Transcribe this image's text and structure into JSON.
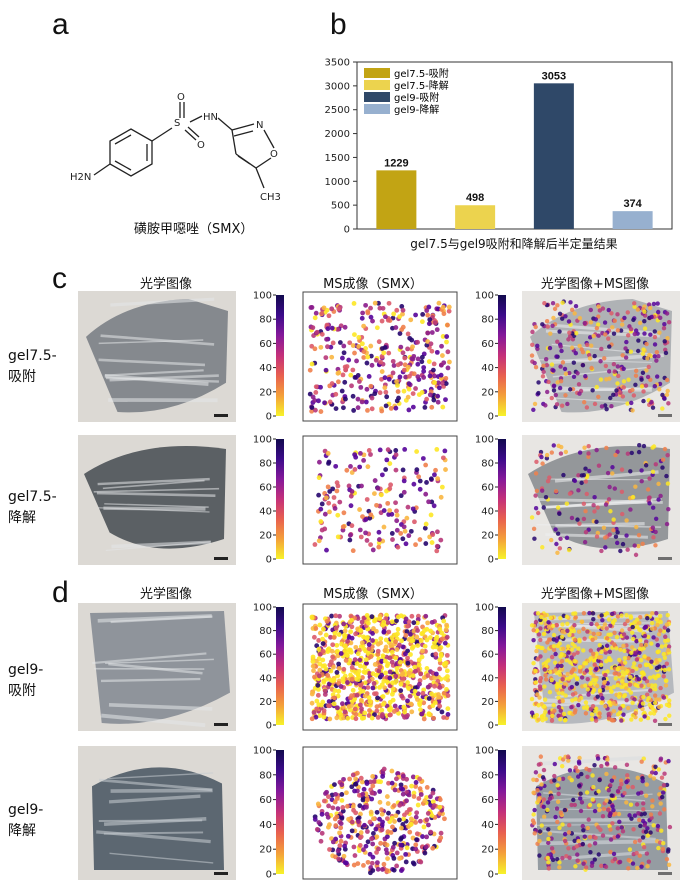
{
  "panels": {
    "a": {
      "letter": "a",
      "caption": "磺胺甲噁唑（SMX）",
      "atoms": {
        "nh": "HN",
        "s": "S",
        "o1": "O",
        "o2": "O",
        "n_ring": "N",
        "o_ring": "O",
        "h2n": "H2N",
        "ch3": "CH3"
      }
    },
    "b": {
      "letter": "b"
    },
    "c": {
      "letter": "c",
      "col_optical": "光学图像",
      "col_ms": "MS成像（SMX）",
      "col_overlay": "光学图像+MS图像",
      "row1_line1": "gel7.5-",
      "row1_line2": "吸附",
      "row2_line1": "gel7.5-",
      "row2_line2": "降解"
    },
    "d": {
      "letter": "d",
      "col_optical": "光学图像",
      "col_ms": "MS成像（SMX）",
      "col_overlay": "光学图像+MS图像",
      "row1_line1": "gel9-",
      "row1_line2": "吸附",
      "row2_line1": "gel9-",
      "row2_line2": "降解"
    }
  },
  "colorbar_ticks": [
    "100",
    "80",
    "60",
    "40",
    "20",
    "0"
  ],
  "colors": {
    "gel75_ads": "#c2a414",
    "gel75_deg": "#ecd34e",
    "gel9_ads": "#2f4868",
    "gel9_deg": "#97b0cf"
  },
  "chart_data": {
    "type": "bar",
    "categories": [
      "gel7.5-吸附",
      "gel7.5-降解",
      "gel9-吸附",
      "gel9-降解"
    ],
    "values": [
      1229,
      498,
      3053,
      374
    ],
    "xlabel": "gel7.5与gel9吸附和降解后半定量结果",
    "ylabel": "",
    "ylim": [
      0,
      3500
    ],
    "yticks": [
      0,
      500,
      1000,
      1500,
      2000,
      2500,
      3000,
      3500
    ],
    "legend": [
      "gel7.5-吸附",
      "gel7.5-降解",
      "gel9-吸附",
      "gel9-降解"
    ],
    "legend_position": "top-left",
    "grid": false
  }
}
